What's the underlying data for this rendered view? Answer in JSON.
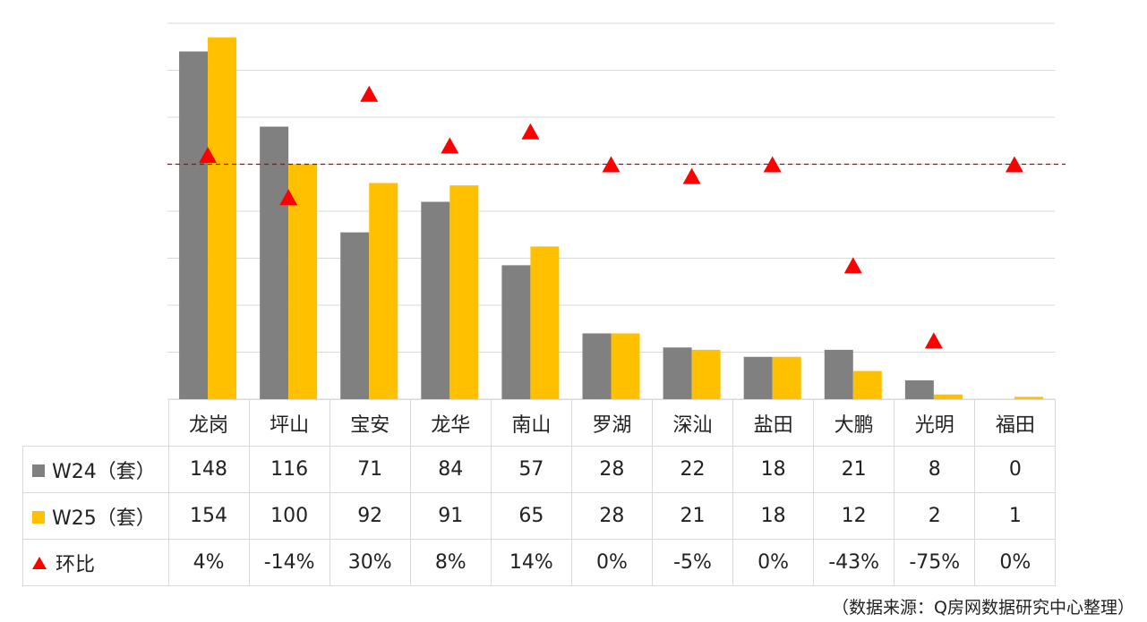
{
  "chart_data": {
    "type": "bar",
    "categories": [
      "龙岗",
      "坪山",
      "宝安",
      "龙华",
      "南山",
      "罗湖",
      "深汕",
      "盐田",
      "大鹏",
      "光明",
      "福田"
    ],
    "series": [
      {
        "name": "W24（套）",
        "values": [
          148,
          116,
          71,
          84,
          57,
          28,
          22,
          18,
          21,
          8,
          0
        ],
        "color": "#808080",
        "marker": "square"
      },
      {
        "name": "W25（套）",
        "values": [
          154,
          100,
          92,
          91,
          65,
          28,
          21,
          18,
          12,
          2,
          1
        ],
        "color": "#ffc000",
        "marker": "square"
      },
      {
        "name": "环比",
        "values": [
          0.04,
          -0.14,
          0.3,
          0.08,
          0.14,
          0,
          -0.05,
          0,
          -0.43,
          -0.75,
          0
        ],
        "labels": [
          "4%",
          "-14%",
          "30%",
          "8%",
          "14%",
          "0%",
          "-5%",
          "0%",
          "-43%",
          "-75%",
          "0%"
        ],
        "color": "#ff0000",
        "marker": "triangle",
        "axis": "secondary"
      }
    ],
    "ylim": [
      0,
      160
    ],
    "y2lim": [
      -1.0,
      0.6
    ],
    "reference_line": 0,
    "grid": true,
    "legend": "data-table",
    "title": "",
    "xlabel": "",
    "ylabel": ""
  },
  "source_note": "（数据来源：Q房网数据研究中心整理）"
}
